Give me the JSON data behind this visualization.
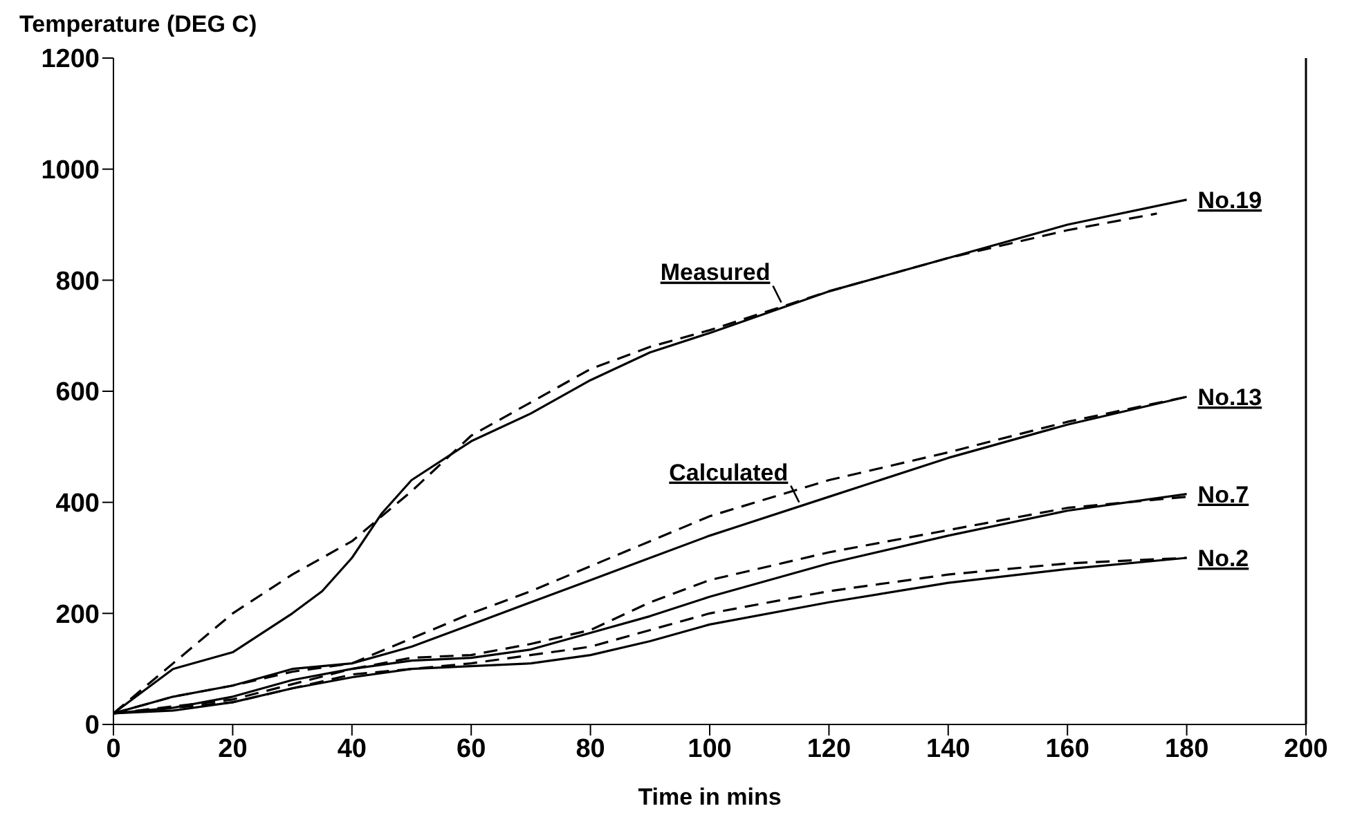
{
  "chart_data": {
    "type": "line",
    "ylabel": "Temperature (DEG C)",
    "xlabel": "Time in mins",
    "xlim": [
      0,
      200
    ],
    "xticks": [
      0,
      20,
      40,
      60,
      80,
      100,
      120,
      140,
      160,
      180,
      200
    ],
    "ylim": [
      0,
      1200
    ],
    "yticks": [
      0,
      200,
      400,
      600,
      800,
      1000,
      1200
    ],
    "marker": "none",
    "series": [
      {
        "name": "No.19",
        "color": "#000000",
        "line_style": "solid",
        "x": [
          0,
          10,
          20,
          30,
          35,
          40,
          45,
          50,
          60,
          70,
          80,
          90,
          100,
          120,
          140,
          160,
          180
        ],
        "values": [
          20,
          100,
          130,
          200,
          240,
          300,
          380,
          440,
          510,
          560,
          620,
          670,
          705,
          780,
          840,
          900,
          945
        ]
      },
      {
        "color": "#000000",
        "line_style": "dashed",
        "x": [
          0,
          10,
          20,
          30,
          40,
          50,
          60,
          70,
          80,
          90,
          100,
          120,
          140,
          160,
          175
        ],
        "values": [
          20,
          110,
          200,
          270,
          330,
          420,
          520,
          580,
          640,
          680,
          710,
          780,
          840,
          890,
          920
        ]
      },
      {
        "name": "No.13",
        "color": "#000000",
        "line_style": "solid",
        "x": [
          0,
          10,
          20,
          30,
          40,
          50,
          60,
          70,
          80,
          90,
          100,
          120,
          140,
          160,
          180
        ],
        "values": [
          20,
          50,
          70,
          100,
          110,
          140,
          180,
          220,
          260,
          300,
          340,
          410,
          480,
          540,
          590
        ]
      },
      {
        "color": "#000000",
        "line_style": "dashed",
        "x": [
          0,
          10,
          20,
          30,
          40,
          50,
          60,
          70,
          80,
          90,
          100,
          120,
          140,
          160,
          180
        ],
        "values": [
          20,
          50,
          70,
          95,
          110,
          155,
          200,
          240,
          285,
          330,
          375,
          440,
          490,
          545,
          590
        ]
      },
      {
        "name": "No.7",
        "color": "#000000",
        "line_style": "solid",
        "x": [
          0,
          10,
          20,
          30,
          40,
          50,
          60,
          70,
          80,
          90,
          100,
          120,
          140,
          160,
          180
        ],
        "values": [
          20,
          30,
          50,
          80,
          100,
          115,
          120,
          135,
          165,
          195,
          230,
          290,
          340,
          385,
          415
        ]
      },
      {
        "color": "#000000",
        "line_style": "dashed",
        "x": [
          0,
          20,
          40,
          50,
          60,
          70,
          80,
          90,
          100,
          120,
          140,
          160,
          180
        ],
        "values": [
          20,
          45,
          100,
          120,
          125,
          145,
          170,
          220,
          260,
          310,
          350,
          390,
          410
        ]
      },
      {
        "name": "No.2",
        "color": "#000000",
        "line_style": "solid",
        "x": [
          0,
          10,
          20,
          30,
          40,
          50,
          60,
          70,
          80,
          90,
          100,
          120,
          140,
          160,
          180
        ],
        "values": [
          20,
          25,
          40,
          65,
          85,
          100,
          105,
          110,
          125,
          150,
          180,
          220,
          255,
          280,
          300
        ]
      },
      {
        "color": "#000000",
        "line_style": "dashed",
        "x": [
          0,
          20,
          40,
          60,
          80,
          90,
          100,
          120,
          140,
          160,
          180
        ],
        "values": [
          20,
          40,
          90,
          110,
          140,
          170,
          200,
          240,
          270,
          290,
          300
        ]
      }
    ],
    "annotations": [
      {
        "text": "Measured",
        "x": 112,
        "y": 760
      },
      {
        "text": "Calculated",
        "x": 115,
        "y": 400
      }
    ]
  }
}
